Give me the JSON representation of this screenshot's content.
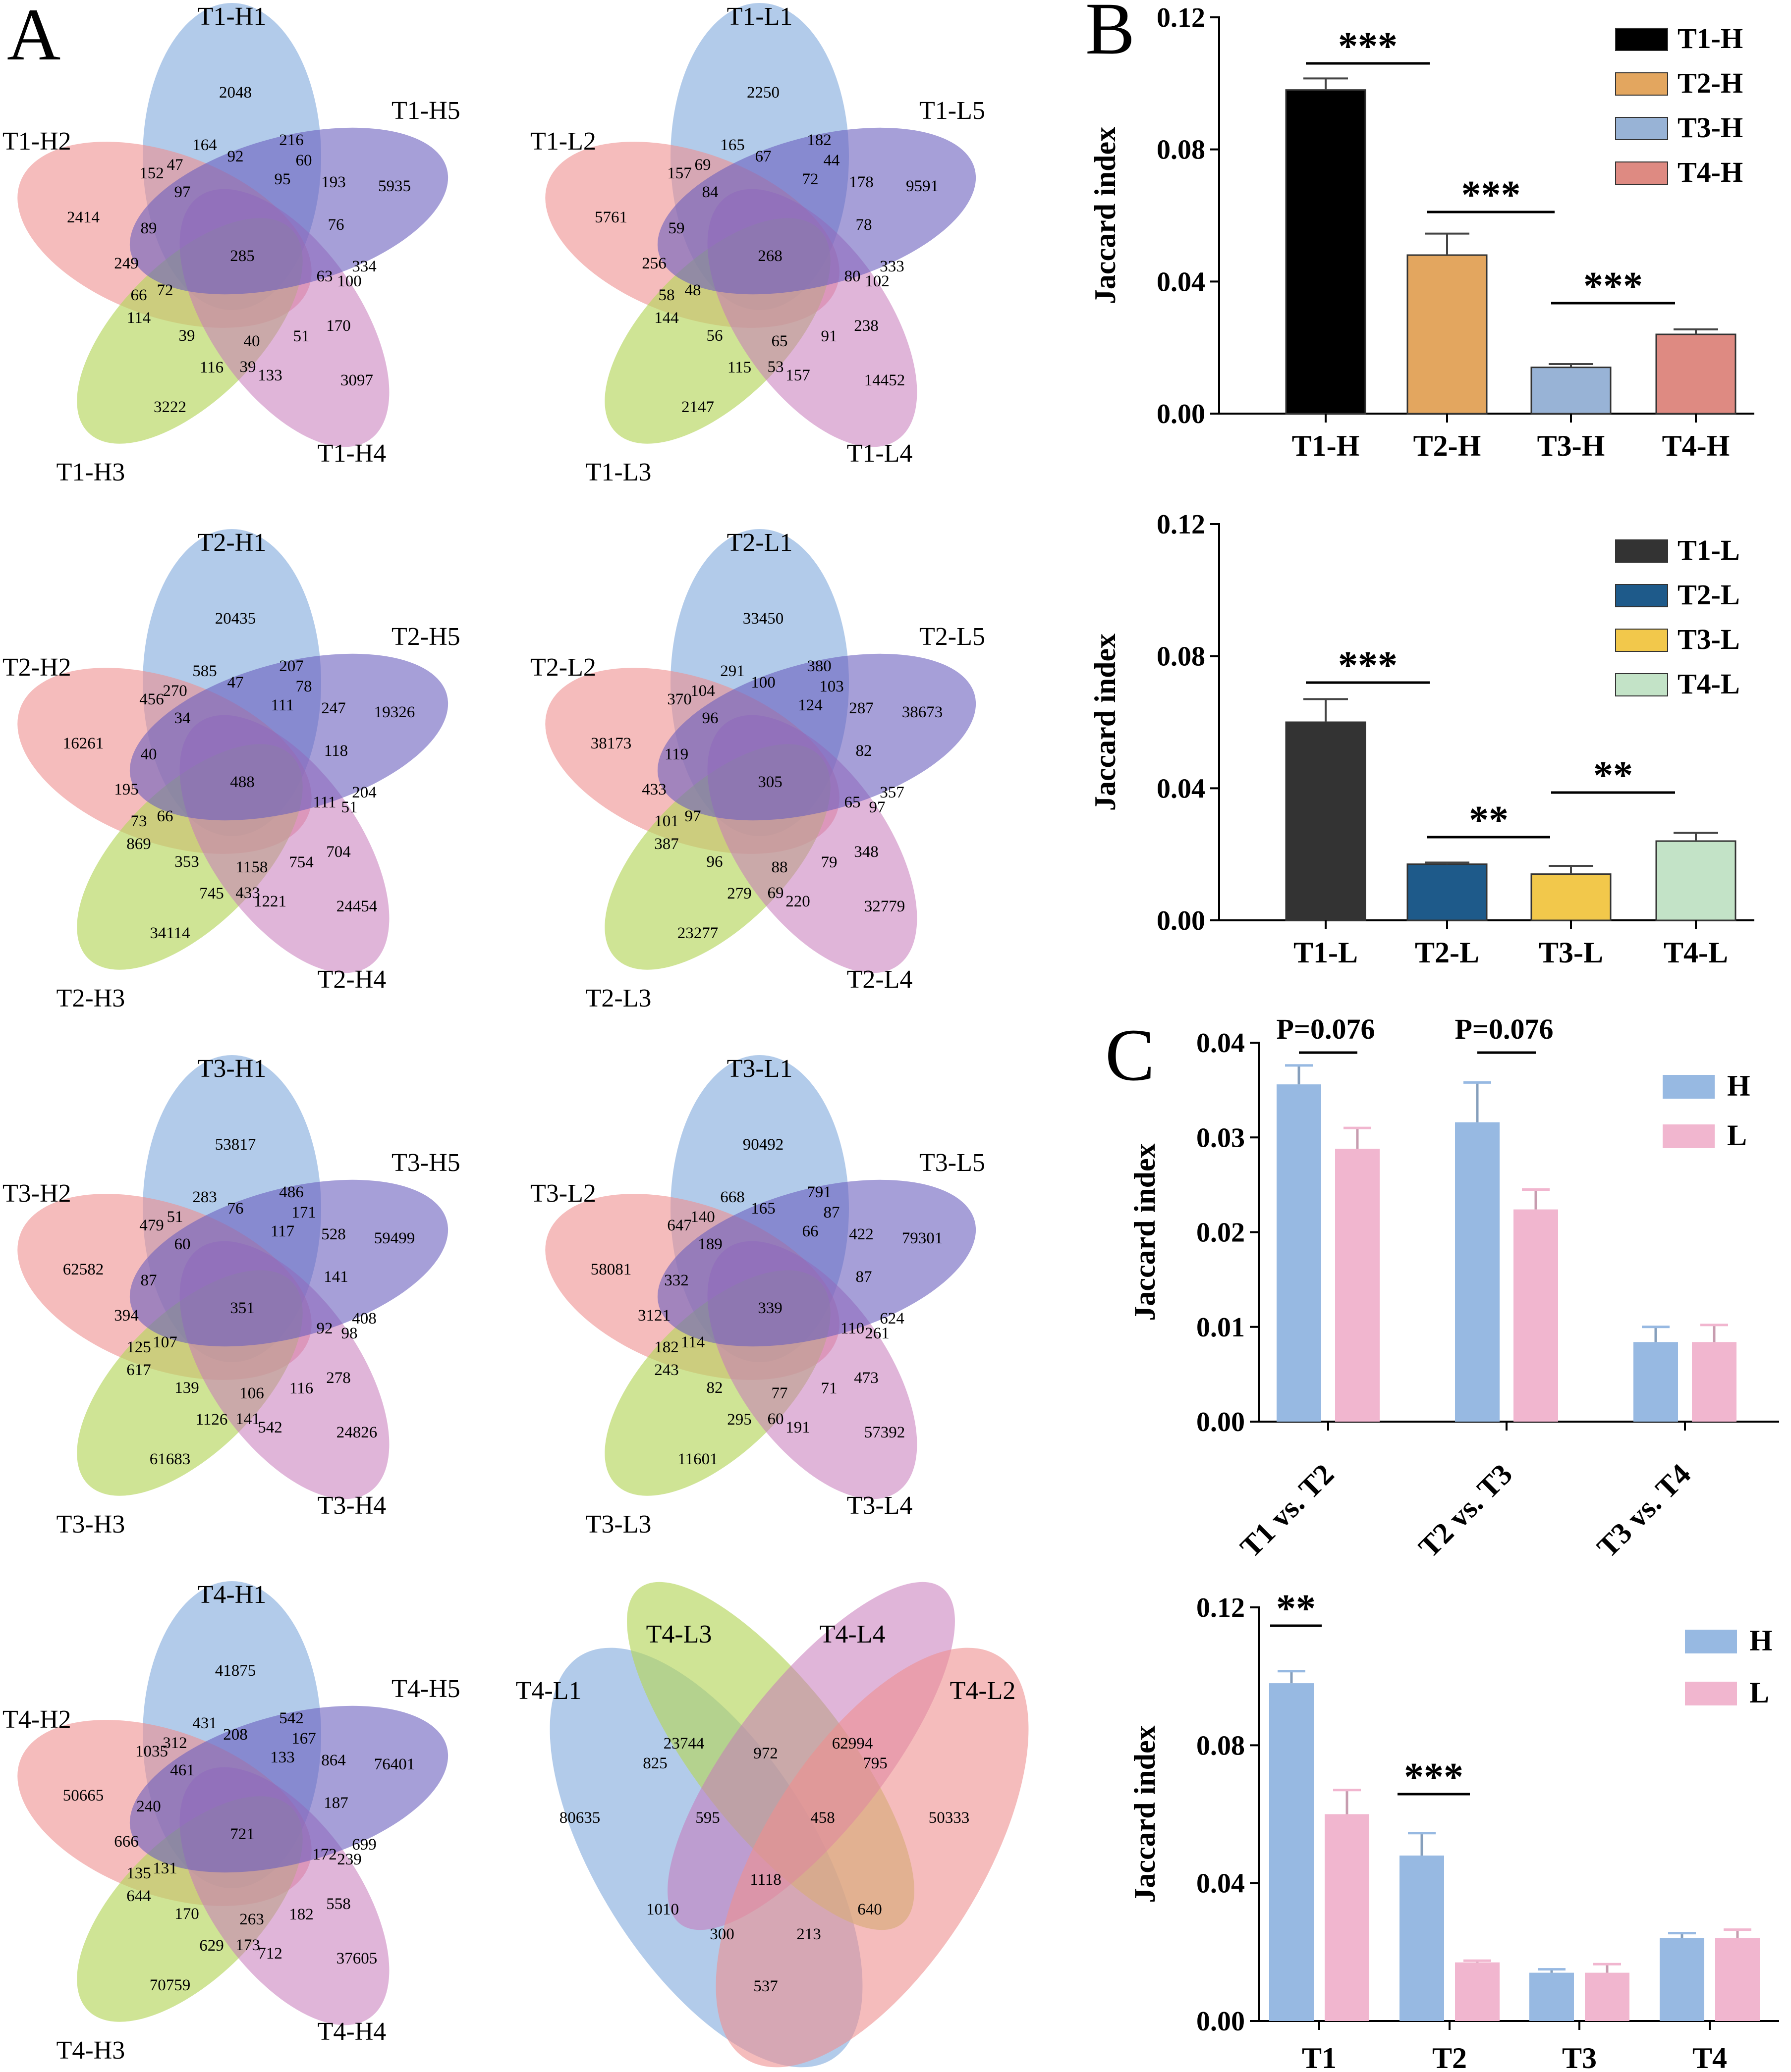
{
  "panel_labels": {
    "A": "A",
    "B": "B",
    "C": "C"
  },
  "venns": [
    {
      "labels": [
        "T1-H1",
        "T1-H2",
        "T1-H3",
        "T1-H4",
        "T1-H5"
      ],
      "values": [
        "2048",
        "2414",
        "3222",
        "3097",
        "5935",
        "164",
        "216",
        "152",
        "47",
        "92",
        "60",
        "95",
        "193",
        "97",
        "89",
        "76",
        "249",
        "285",
        "63",
        "100",
        "334",
        "66",
        "72",
        "114",
        "170",
        "39",
        "40",
        "51",
        "116",
        "39",
        "133"
      ]
    },
    {
      "labels": [
        "T1-L1",
        "T1-L2",
        "T1-L3",
        "T1-L4",
        "T1-L5"
      ],
      "values": [
        "2250",
        "5761",
        "2147",
        "14452",
        "9591",
        "165",
        "182",
        "157",
        "69",
        "67",
        "44",
        "72",
        "178",
        "84",
        "59",
        "78",
        "256",
        "268",
        "80",
        "102",
        "333",
        "58",
        "48",
        "144",
        "238",
        "56",
        "65",
        "91",
        "115",
        "53",
        "157"
      ]
    },
    {
      "labels": [
        "T2-H1",
        "T2-H2",
        "T2-H3",
        "T2-H4",
        "T2-H5"
      ],
      "values": [
        "20435",
        "16261",
        "34114",
        "24454",
        "19326",
        "585",
        "207",
        "456",
        "270",
        "47",
        "78",
        "111",
        "247",
        "34",
        "40",
        "118",
        "195",
        "488",
        "111",
        "51",
        "204",
        "73",
        "66",
        "869",
        "704",
        "353",
        "1158",
        "754",
        "745",
        "433",
        "1221"
      ]
    },
    {
      "labels": [
        "T2-L1",
        "T2-L2",
        "T2-L3",
        "T2-L4",
        "T2-L5"
      ],
      "values": [
        "33450",
        "38173",
        "23277",
        "32779",
        "38673",
        "291",
        "380",
        "370",
        "104",
        "100",
        "103",
        "124",
        "287",
        "96",
        "119",
        "82",
        "433",
        "305",
        "65",
        "97",
        "357",
        "101",
        "97",
        "387",
        "348",
        "96",
        "88",
        "79",
        "279",
        "69",
        "220"
      ]
    },
    {
      "labels": [
        "T3-H1",
        "T3-H2",
        "T3-H3",
        "T3-H4",
        "T3-H5"
      ],
      "values": [
        "53817",
        "62582",
        "61683",
        "24826",
        "59499",
        "283",
        "486",
        "479",
        "51",
        "76",
        "171",
        "117",
        "528",
        "60",
        "87",
        "141",
        "394",
        "351",
        "92",
        "98",
        "408",
        "125",
        "107",
        "617",
        "278",
        "139",
        "106",
        "116",
        "1126",
        "141",
        "542"
      ]
    },
    {
      "labels": [
        "T3-L1",
        "T3-L2",
        "T3-L3",
        "T3-L4",
        "T3-L5"
      ],
      "values": [
        "90492",
        "58081",
        "11601",
        "57392",
        "79301",
        "668",
        "791",
        "647",
        "140",
        "165",
        "87",
        "66",
        "422",
        "189",
        "332",
        "87",
        "3121",
        "339",
        "110",
        "261",
        "624",
        "182",
        "114",
        "243",
        "473",
        "82",
        "77",
        "71",
        "295",
        "60",
        "191"
      ]
    },
    {
      "labels": [
        "T4-H1",
        "T4-H2",
        "T4-H3",
        "T4-H4",
        "T4-H5"
      ],
      "values": [
        "41875",
        "50665",
        "70759",
        "37605",
        "76401",
        "431",
        "542",
        "1035",
        "312",
        "208",
        "167",
        "133",
        "864",
        "461",
        "240",
        "187",
        "666",
        "721",
        "172",
        "239",
        "699",
        "135",
        "131",
        "644",
        "558",
        "170",
        "263",
        "182",
        "629",
        "173",
        "712"
      ]
    }
  ],
  "venn4": {
    "labels": [
      "T4-L1",
      "T4-L3",
      "T4-L4",
      "T4-L2"
    ],
    "values": [
      "80635",
      "23744",
      "62994",
      "50333",
      "825",
      "972",
      "795",
      "595",
      "458",
      "1118",
      "1010",
      "640",
      "300",
      "213",
      "537"
    ]
  },
  "chart_data": [
    {
      "type": "bar",
      "categories": [
        "T1-H",
        "T2-H",
        "T3-H",
        "T4-H"
      ],
      "values": [
        0.098,
        0.048,
        0.014,
        0.024
      ],
      "errors": [
        0.0035,
        0.0065,
        0.001,
        0.0015
      ],
      "colors": [
        "#000000",
        "#E3A65F",
        "#98B3D6",
        "#DE8A82"
      ],
      "legend": [
        "T1-H",
        "T2-H",
        "T3-H",
        "T4-H"
      ],
      "ylabel": "Jaccard index",
      "ylim": [
        0,
        0.12
      ],
      "yticks": [
        "0.00",
        "0.04",
        "0.08",
        "0.12"
      ],
      "significance": [
        "***",
        "***",
        "***"
      ]
    },
    {
      "type": "bar",
      "categories": [
        "T1-L",
        "T2-L",
        "T3-L",
        "T4-L"
      ],
      "values": [
        0.06,
        0.017,
        0.014,
        0.024
      ],
      "errors": [
        0.007,
        0.0005,
        0.0025,
        0.0025
      ],
      "colors": [
        "#333333",
        "#1E5A8A",
        "#F2C84B",
        "#C3E3C7"
      ],
      "legend": [
        "T1-L",
        "T2-L",
        "T3-L",
        "T4-L"
      ],
      "ylabel": "Jaccard index",
      "ylim": [
        0,
        0.12
      ],
      "yticks": [
        "0.00",
        "0.04",
        "0.08",
        "0.12"
      ],
      "significance": [
        "***",
        "**",
        "**"
      ]
    },
    {
      "type": "bar",
      "categories": [
        "T1 vs. T2",
        "T2 vs. T3",
        "T3 vs. T4"
      ],
      "series": [
        {
          "name": "H",
          "color": "#97B9E2",
          "values": [
            0.0356,
            0.0316,
            0.0084
          ],
          "errors": [
            0.002,
            0.0042,
            0.0016
          ]
        },
        {
          "name": "L",
          "color": "#F1B6CF",
          "values": [
            0.0288,
            0.0224,
            0.0084
          ],
          "errors": [
            0.0022,
            0.0021,
            0.0018
          ]
        }
      ],
      "ylabel": "Jaccard index",
      "ylim": [
        0,
        0.04
      ],
      "yticks": [
        "0.00",
        "0.01",
        "0.02",
        "0.03",
        "0.04"
      ],
      "annotations": [
        "P=0.076",
        "P=0.076"
      ]
    },
    {
      "type": "bar",
      "categories": [
        "T1",
        "T2",
        "T3",
        "T4"
      ],
      "series": [
        {
          "name": "H",
          "color": "#97B9E2",
          "values": [
            0.098,
            0.048,
            0.014,
            0.024
          ],
          "errors": [
            0.0035,
            0.0065,
            0.001,
            0.0015
          ]
        },
        {
          "name": "L",
          "color": "#F1B6CF",
          "values": [
            0.06,
            0.017,
            0.014,
            0.024
          ],
          "errors": [
            0.007,
            0.0005,
            0.0025,
            0.0025
          ]
        }
      ],
      "ylabel": "Jaccard index",
      "ylim": [
        0,
        0.12
      ],
      "yticks": [
        "0.00",
        "0.04",
        "0.08",
        "0.12"
      ],
      "significance": [
        "**",
        "***"
      ]
    }
  ]
}
